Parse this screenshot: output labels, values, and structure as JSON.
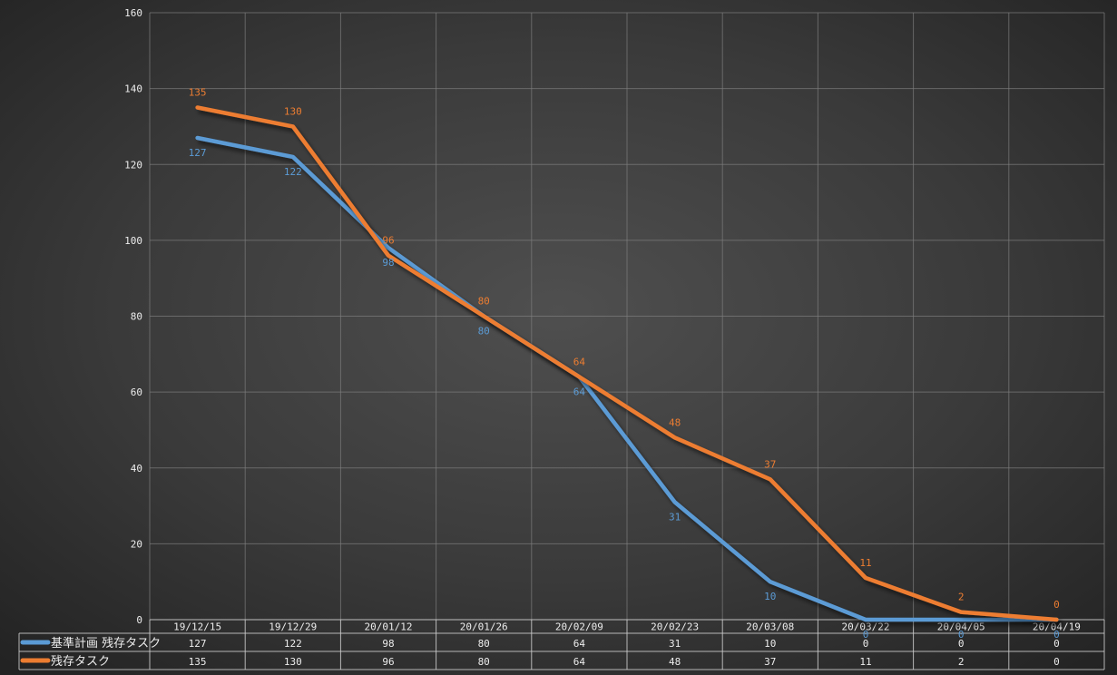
{
  "chart_data": {
    "type": "line",
    "title": "",
    "xlabel": "",
    "ylabel": "",
    "categories": [
      "19/12/15",
      "19/12/29",
      "20/01/12",
      "20/01/26",
      "20/02/09",
      "20/02/23",
      "20/03/08",
      "20/03/22",
      "20/04/05",
      "20/04/19"
    ],
    "series": [
      {
        "name": "基準計画 残存タスク",
        "color": "#5B9BD5",
        "values": [
          127,
          122,
          98,
          80,
          64,
          31,
          10,
          0,
          0,
          0
        ],
        "label_position": "below"
      },
      {
        "name": "残存タスク",
        "color": "#ED7D31",
        "values": [
          135,
          130,
          96,
          80,
          64,
          48,
          37,
          11,
          2,
          0
        ],
        "label_position": "above"
      }
    ],
    "ylim": [
      0,
      160
    ],
    "yticks": [
      0,
      20,
      40,
      60,
      80,
      100,
      120,
      140,
      160
    ],
    "grid": true,
    "data_labels": true,
    "legend_position": "data-table-left",
    "data_table": true
  },
  "colors": {
    "series_blue": "#5B9BD5",
    "series_orange": "#ED7D31",
    "background_center": "#4f4f4f",
    "background_mid": "#3a3a3a",
    "background_edge": "#232323",
    "gridline": "#7d7d7d",
    "table_border": "#cfcfcf",
    "text": "#ededed"
  }
}
